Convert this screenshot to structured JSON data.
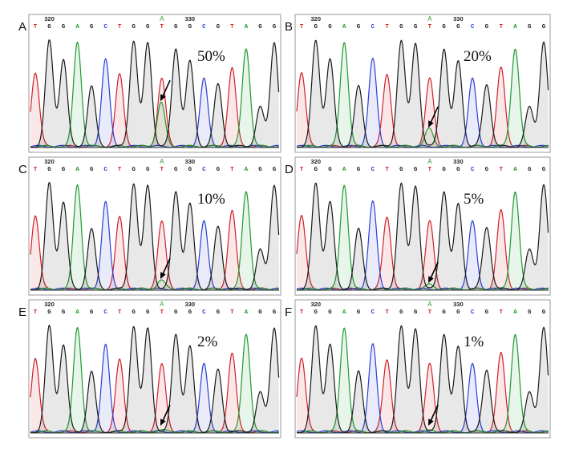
{
  "sequence": [
    "T",
    "G",
    "G",
    "A",
    "G",
    "C",
    "T",
    "G",
    "G",
    "T",
    "G",
    "G",
    "C",
    "G",
    "T",
    "A",
    "G",
    "G"
  ],
  "position_labels": [
    {
      "text": "320",
      "base_index": 1
    },
    {
      "text": "330",
      "base_index": 11
    }
  ],
  "variant": {
    "label": "A",
    "base_index": 9
  },
  "base_colors": {
    "A": "#1f9a2e",
    "C": "#2b3fd6",
    "G": "#1a1a1a",
    "T": "#d0202a"
  },
  "panels": [
    {
      "letter": "A",
      "percent": "50%",
      "fraction": 0.5
    },
    {
      "letter": "B",
      "percent": "20%",
      "fraction": 0.2
    },
    {
      "letter": "C",
      "percent": "10%",
      "fraction": 0.1
    },
    {
      "letter": "D",
      "percent": "5%",
      "fraction": 0.05
    },
    {
      "letter": "E",
      "percent": "2%",
      "fraction": 0.02
    },
    {
      "letter": "F",
      "percent": "1%",
      "fraction": 0.01
    }
  ]
}
